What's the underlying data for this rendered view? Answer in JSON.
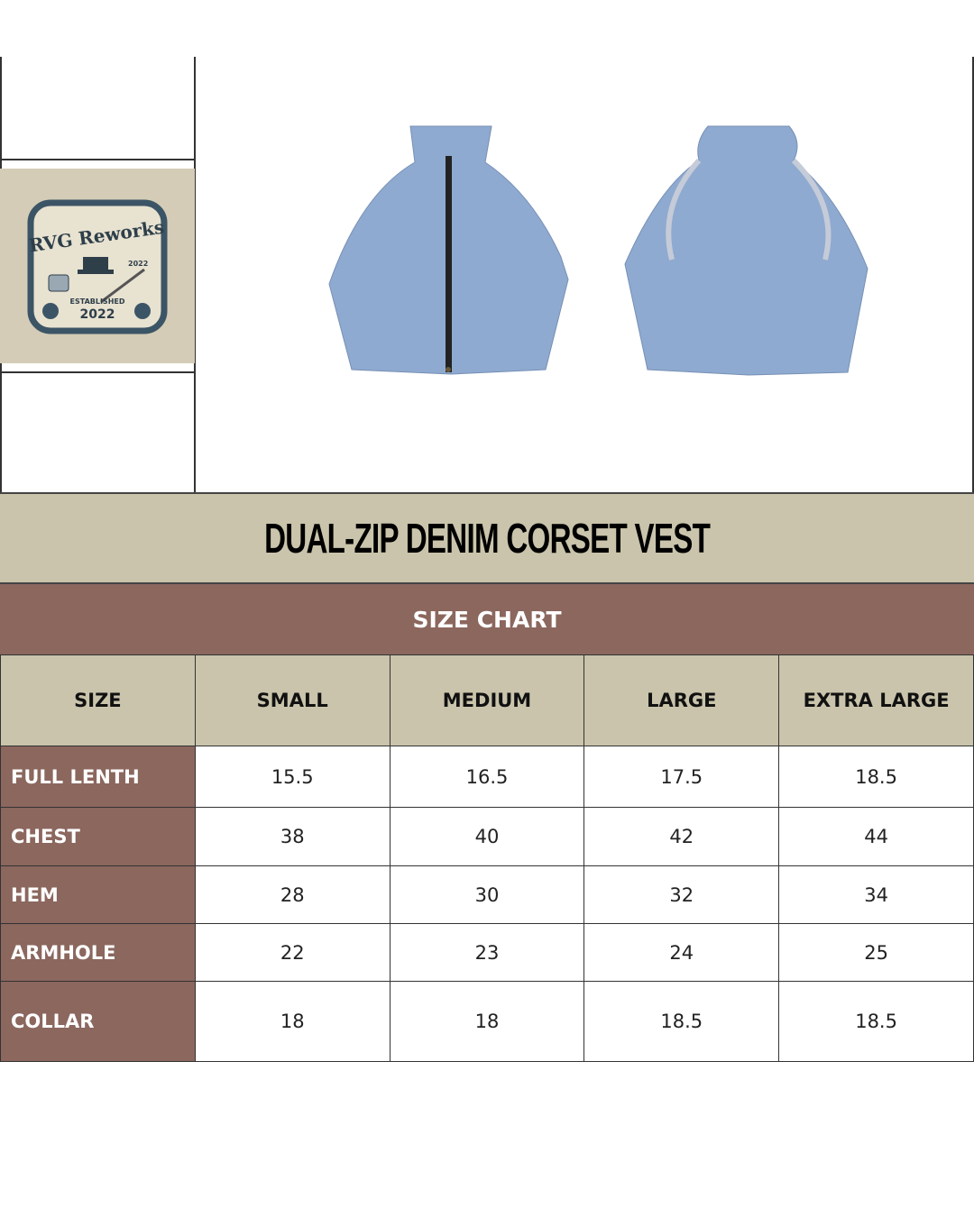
{
  "logo": {
    "brand": "RVG Reworks",
    "tagline": "ESTABLISHED 2022",
    "year": "2022"
  },
  "title": "DUAL-ZIP DENIM CORSET VEST",
  "subtitle": "SIZE CHART",
  "colors": {
    "tan": "#c9c4ab",
    "brown": "#8b675e",
    "denim": "#8faad0"
  },
  "table": {
    "headers": [
      "SIZE",
      "SMALL",
      "MEDIUM",
      "LARGE",
      "EXTRA LARGE"
    ],
    "rows": [
      {
        "label": "FULL LENTH",
        "values": [
          "15.5",
          "16.5",
          "17.5",
          "18.5"
        ]
      },
      {
        "label": "CHEST",
        "values": [
          "38",
          "40",
          "42",
          "44"
        ]
      },
      {
        "label": "HEM",
        "values": [
          "28",
          "30",
          "32",
          "34"
        ]
      },
      {
        "label": "ARMHOLE",
        "values": [
          "22",
          "23",
          "24",
          "25"
        ]
      },
      {
        "label": "COLLAR",
        "values": [
          "18",
          "18",
          "18.5",
          "18.5"
        ]
      }
    ]
  }
}
